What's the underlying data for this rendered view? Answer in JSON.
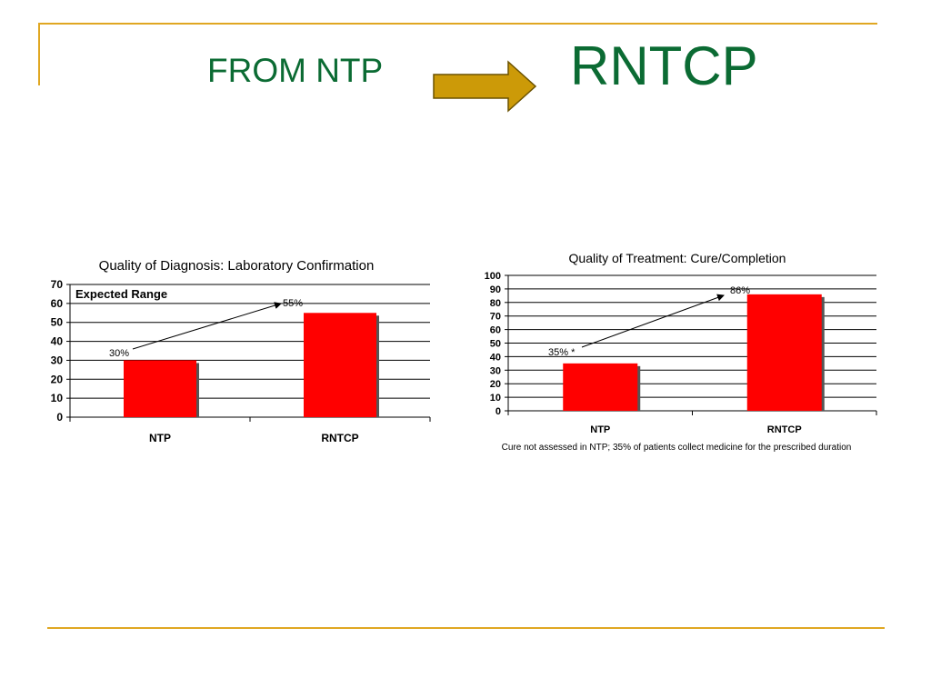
{
  "slide": {
    "title_from": "FROM NTP",
    "title_to": "RNTCP",
    "title_color": "#0b6b33",
    "rule_color": "#e0a722",
    "arrow_icon": "right-arrow-icon",
    "arrow_color": "#cc9a08"
  },
  "chart_data": [
    {
      "type": "bar",
      "title": "Quality of Diagnosis: Laboratory Confirmation",
      "categories": [
        "NTP",
        "RNTCP"
      ],
      "values": [
        30,
        55
      ],
      "ylim": [
        0,
        70
      ],
      "ytick_step": 10,
      "grid": true,
      "bar_color": "#ff0000",
      "annotations": [
        {
          "text": "Expected Range",
          "placement": "top-left"
        },
        {
          "text": "30%",
          "at": {
            "x": "NTP",
            "y": 30
          }
        },
        {
          "text": "55%",
          "at": {
            "x": "RNTCP",
            "y": 55
          }
        }
      ],
      "arrow": {
        "from": "30%",
        "to": "55%"
      }
    },
    {
      "type": "bar",
      "title": "Quality of Treatment: Cure/Completion",
      "categories": [
        "NTP",
        "RNTCP"
      ],
      "values": [
        35,
        86
      ],
      "ylim": [
        0,
        100
      ],
      "ytick_step": 10,
      "grid": true,
      "bar_color": "#ff0000",
      "annotations": [
        {
          "text": "35% *",
          "at": {
            "x": "NTP",
            "y": 35
          }
        },
        {
          "text": "86%",
          "at": {
            "x": "RNTCP",
            "y": 86
          }
        }
      ],
      "arrow": {
        "from": "35% *",
        "to": "86%"
      },
      "footnote": "Cure not assessed in NTP; 35% of patients collect medicine for the prescribed duration"
    }
  ]
}
